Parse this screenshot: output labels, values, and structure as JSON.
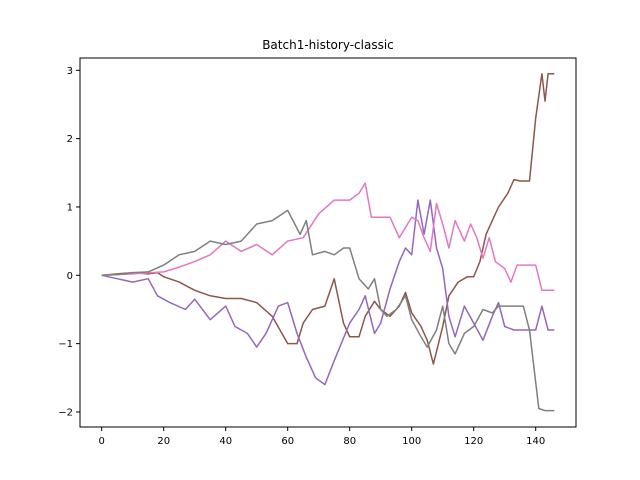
{
  "chart_data": {
    "type": "line",
    "title": "Batch1-history-classic",
    "xlabel": "",
    "ylabel": "",
    "xlim": [
      -7,
      153
    ],
    "ylim": [
      -2.22,
      3.18
    ],
    "xticks": [
      0,
      20,
      40,
      60,
      80,
      100,
      120,
      140
    ],
    "yticks": [
      -2,
      -1,
      0,
      1,
      2,
      3
    ],
    "xtick_labels": [
      "0",
      "20",
      "40",
      "60",
      "80",
      "100",
      "120",
      "140"
    ],
    "ytick_labels": [
      "−2",
      "−1",
      "0",
      "1",
      "2",
      "3"
    ],
    "grid": false,
    "legend": false,
    "series": [
      {
        "color": "#8c564b",
        "points": [
          [
            0,
            0
          ],
          [
            5,
            0.02
          ],
          [
            10,
            0.04
          ],
          [
            15,
            0.02
          ],
          [
            18,
            0.04
          ],
          [
            20,
            -0.02
          ],
          [
            25,
            -0.1
          ],
          [
            30,
            -0.22
          ],
          [
            35,
            -0.3
          ],
          [
            40,
            -0.34
          ],
          [
            45,
            -0.34
          ],
          [
            50,
            -0.4
          ],
          [
            55,
            -0.6
          ],
          [
            60,
            -1.0
          ],
          [
            63,
            -1.0
          ],
          [
            65,
            -0.7
          ],
          [
            68,
            -0.5
          ],
          [
            72,
            -0.45
          ],
          [
            75,
            -0.05
          ],
          [
            78,
            -0.7
          ],
          [
            80,
            -0.9
          ],
          [
            83,
            -0.9
          ],
          [
            85,
            -0.6
          ],
          [
            88,
            -0.38
          ],
          [
            90,
            -0.5
          ],
          [
            93,
            -0.6
          ],
          [
            96,
            -0.45
          ],
          [
            98,
            -0.25
          ],
          [
            100,
            -0.55
          ],
          [
            103,
            -0.75
          ],
          [
            105,
            -0.95
          ],
          [
            107,
            -1.3
          ],
          [
            110,
            -0.75
          ],
          [
            112,
            -0.3
          ],
          [
            115,
            -0.1
          ],
          [
            118,
            -0.02
          ],
          [
            120,
            -0.02
          ],
          [
            122,
            0.2
          ],
          [
            124,
            0.6
          ],
          [
            126,
            0.8
          ],
          [
            128,
            1.0
          ],
          [
            131,
            1.2
          ],
          [
            133,
            1.4
          ],
          [
            135,
            1.38
          ],
          [
            138,
            1.38
          ],
          [
            140,
            2.3
          ],
          [
            142,
            2.95
          ],
          [
            143,
            2.55
          ],
          [
            144,
            2.95
          ],
          [
            146,
            2.95
          ]
        ]
      },
      {
        "color": "#9467bd",
        "points": [
          [
            0,
            0
          ],
          [
            5,
            -0.05
          ],
          [
            10,
            -0.1
          ],
          [
            15,
            -0.05
          ],
          [
            18,
            -0.3
          ],
          [
            22,
            -0.4
          ],
          [
            27,
            -0.5
          ],
          [
            30,
            -0.35
          ],
          [
            35,
            -0.65
          ],
          [
            40,
            -0.45
          ],
          [
            43,
            -0.75
          ],
          [
            47,
            -0.85
          ],
          [
            50,
            -1.05
          ],
          [
            53,
            -0.85
          ],
          [
            57,
            -0.45
          ],
          [
            60,
            -0.4
          ],
          [
            63,
            -0.85
          ],
          [
            66,
            -1.2
          ],
          [
            69,
            -1.5
          ],
          [
            72,
            -1.6
          ],
          [
            75,
            -1.25
          ],
          [
            80,
            -0.7
          ],
          [
            83,
            -0.5
          ],
          [
            85,
            -0.3
          ],
          [
            88,
            -0.85
          ],
          [
            90,
            -0.7
          ],
          [
            93,
            -0.2
          ],
          [
            96,
            0.2
          ],
          [
            98,
            0.4
          ],
          [
            100,
            0.3
          ],
          [
            102,
            1.1
          ],
          [
            104,
            0.6
          ],
          [
            106,
            1.1
          ],
          [
            108,
            0.4
          ],
          [
            110,
            0.1
          ],
          [
            112,
            -0.6
          ],
          [
            114,
            -0.9
          ],
          [
            117,
            -0.45
          ],
          [
            120,
            -0.7
          ],
          [
            123,
            -0.95
          ],
          [
            126,
            -0.6
          ],
          [
            128,
            -0.4
          ],
          [
            130,
            -0.75
          ],
          [
            133,
            -0.8
          ],
          [
            136,
            -0.8
          ],
          [
            140,
            -0.8
          ],
          [
            142,
            -0.45
          ],
          [
            144,
            -0.8
          ],
          [
            146,
            -0.8
          ]
        ]
      },
      {
        "color": "#e377c2",
        "points": [
          [
            0,
            0
          ],
          [
            10,
            0.02
          ],
          [
            20,
            0.05
          ],
          [
            25,
            0.12
          ],
          [
            30,
            0.2
          ],
          [
            35,
            0.3
          ],
          [
            40,
            0.5
          ],
          [
            45,
            0.35
          ],
          [
            50,
            0.45
          ],
          [
            55,
            0.3
          ],
          [
            60,
            0.5
          ],
          [
            65,
            0.55
          ],
          [
            70,
            0.9
          ],
          [
            75,
            1.1
          ],
          [
            80,
            1.1
          ],
          [
            83,
            1.2
          ],
          [
            85,
            1.35
          ],
          [
            87,
            0.85
          ],
          [
            90,
            0.85
          ],
          [
            93,
            0.85
          ],
          [
            96,
            0.55
          ],
          [
            98,
            0.7
          ],
          [
            100,
            0.85
          ],
          [
            102,
            0.8
          ],
          [
            104,
            0.55
          ],
          [
            106,
            0.35
          ],
          [
            108,
            1.05
          ],
          [
            110,
            0.75
          ],
          [
            112,
            0.4
          ],
          [
            114,
            0.8
          ],
          [
            117,
            0.5
          ],
          [
            119,
            0.75
          ],
          [
            121,
            0.55
          ],
          [
            123,
            0.25
          ],
          [
            125,
            0.55
          ],
          [
            127,
            0.2
          ],
          [
            130,
            0.1
          ],
          [
            132,
            -0.1
          ],
          [
            134,
            0.15
          ],
          [
            137,
            0.15
          ],
          [
            140,
            0.15
          ],
          [
            142,
            -0.22
          ],
          [
            146,
            -0.22
          ]
        ]
      },
      {
        "color": "#7f7f7f",
        "points": [
          [
            0,
            0
          ],
          [
            5,
            0.01
          ],
          [
            10,
            0.04
          ],
          [
            15,
            0.05
          ],
          [
            20,
            0.15
          ],
          [
            25,
            0.3
          ],
          [
            30,
            0.35
          ],
          [
            35,
            0.5
          ],
          [
            40,
            0.45
          ],
          [
            45,
            0.5
          ],
          [
            50,
            0.75
          ],
          [
            55,
            0.8
          ],
          [
            60,
            0.95
          ],
          [
            64,
            0.6
          ],
          [
            66,
            0.8
          ],
          [
            68,
            0.3
          ],
          [
            72,
            0.35
          ],
          [
            75,
            0.3
          ],
          [
            78,
            0.4
          ],
          [
            80,
            0.4
          ],
          [
            83,
            -0.05
          ],
          [
            86,
            -0.2
          ],
          [
            88,
            -0.05
          ],
          [
            90,
            -0.5
          ],
          [
            92,
            -0.6
          ],
          [
            95,
            -0.5
          ],
          [
            98,
            -0.3
          ],
          [
            100,
            -0.65
          ],
          [
            103,
            -0.9
          ],
          [
            105,
            -1.05
          ],
          [
            108,
            -0.8
          ],
          [
            110,
            -0.45
          ],
          [
            112,
            -1.0
          ],
          [
            114,
            -1.15
          ],
          [
            117,
            -0.85
          ],
          [
            120,
            -0.75
          ],
          [
            123,
            -0.5
          ],
          [
            126,
            -0.55
          ],
          [
            128,
            -0.45
          ],
          [
            131,
            -0.45
          ],
          [
            134,
            -0.45
          ],
          [
            136,
            -0.45
          ],
          [
            138,
            -0.8
          ],
          [
            141,
            -1.95
          ],
          [
            143,
            -1.98
          ],
          [
            146,
            -1.98
          ]
        ]
      }
    ]
  }
}
